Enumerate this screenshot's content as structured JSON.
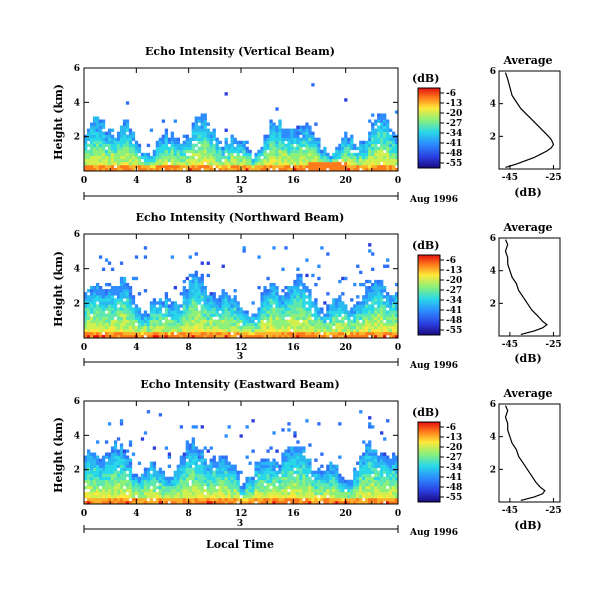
{
  "chart_data": [
    {
      "type": "heatmap",
      "title": "Echo Intensity (Vertical Beam)",
      "ylabel": "Height (km)",
      "xticks": [
        "0",
        "4",
        "8",
        "12",
        "16",
        "20",
        "0"
      ],
      "yticks": [
        "2",
        "4",
        "6"
      ],
      "xlim": [
        0,
        24
      ],
      "ylim": [
        0,
        6
      ],
      "date_label": "3",
      "month_label": "Aug 1996",
      "colorbar": {
        "unit": "(dB)",
        "ticks": [
          "-6",
          "-13",
          "-20",
          "-27",
          "-34",
          "-41",
          "-48",
          "-55"
        ]
      },
      "profile": {
        "title": "Average",
        "xlabel": "(dB)",
        "xticks": [
          "-45",
          "-25"
        ],
        "yticks": [
          "2",
          "4",
          "6"
        ],
        "xlim": [
          -50,
          -22
        ],
        "ylim": [
          0,
          6
        ],
        "points": [
          [
            -47,
            0.1
          ],
          [
            -42,
            0.3
          ],
          [
            -38,
            0.5
          ],
          [
            -34,
            0.7
          ],
          [
            -31,
            0.9
          ],
          [
            -28,
            1.1
          ],
          [
            -26,
            1.3
          ],
          [
            -25,
            1.5
          ],
          [
            -26,
            1.8
          ],
          [
            -28,
            2.1
          ],
          [
            -31,
            2.5
          ],
          [
            -34,
            2.9
          ],
          [
            -37,
            3.3
          ],
          [
            -40,
            3.7
          ],
          [
            -42,
            4.1
          ],
          [
            -44,
            4.5
          ],
          [
            -45,
            5.0
          ],
          [
            -46,
            5.5
          ],
          [
            -47,
            5.9
          ]
        ]
      }
    },
    {
      "type": "heatmap",
      "title": "Echo Intensity (Northward Beam)",
      "ylabel": "Height (km)",
      "xticks": [
        "0",
        "4",
        "8",
        "12",
        "16",
        "20",
        "0"
      ],
      "yticks": [
        "2",
        "4",
        "6"
      ],
      "xlim": [
        0,
        24
      ],
      "ylim": [
        0,
        6
      ],
      "date_label": "3",
      "month_label": "Aug 1996",
      "colorbar": {
        "unit": "(dB)",
        "ticks": [
          "-6",
          "-13",
          "-20",
          "-27",
          "-34",
          "-41",
          "-48",
          "-55"
        ]
      },
      "profile": {
        "title": "Average",
        "xlabel": "(dB)",
        "xticks": [
          "-45",
          "-25"
        ],
        "yticks": [
          "2",
          "4",
          "6"
        ],
        "xlim": [
          -50,
          -22
        ],
        "ylim": [
          0,
          6
        ],
        "points": [
          [
            -40,
            0.1
          ],
          [
            -34,
            0.3
          ],
          [
            -30,
            0.5
          ],
          [
            -28,
            0.7
          ],
          [
            -30,
            0.9
          ],
          [
            -32,
            1.2
          ],
          [
            -35,
            1.6
          ],
          [
            -37,
            2.0
          ],
          [
            -39,
            2.4
          ],
          [
            -41,
            2.8
          ],
          [
            -42,
            3.2
          ],
          [
            -44,
            3.6
          ],
          [
            -45,
            4.0
          ],
          [
            -46,
            4.4
          ],
          [
            -46,
            4.8
          ],
          [
            -47,
            5.2
          ],
          [
            -46,
            5.6
          ],
          [
            -47,
            5.9
          ]
        ]
      }
    },
    {
      "type": "heatmap",
      "title": "Echo Intensity (Eastward Beam)",
      "ylabel": "Height (km)",
      "xticks": [
        "0",
        "4",
        "8",
        "12",
        "16",
        "20",
        "0"
      ],
      "yticks": [
        "2",
        "4",
        "6"
      ],
      "xlim": [
        0,
        24
      ],
      "ylim": [
        0,
        6
      ],
      "date_label": "3",
      "month_label": "Aug 1996",
      "xlabel": "Local Time",
      "colorbar": {
        "unit": "(dB)",
        "ticks": [
          "-6",
          "-13",
          "-20",
          "-27",
          "-34",
          "-41",
          "-48",
          "-55"
        ]
      },
      "profile": {
        "title": "Average",
        "xlabel": "(dB)",
        "xticks": [
          "-45",
          "-25"
        ],
        "yticks": [
          "2",
          "4",
          "6"
        ],
        "xlim": [
          -50,
          -22
        ],
        "ylim": [
          0,
          6
        ],
        "points": [
          [
            -40,
            0.1
          ],
          [
            -34,
            0.3
          ],
          [
            -30,
            0.5
          ],
          [
            -29,
            0.7
          ],
          [
            -31,
            0.9
          ],
          [
            -33,
            1.2
          ],
          [
            -35,
            1.6
          ],
          [
            -37,
            2.0
          ],
          [
            -39,
            2.4
          ],
          [
            -41,
            2.8
          ],
          [
            -42,
            3.2
          ],
          [
            -44,
            3.6
          ],
          [
            -45,
            4.0
          ],
          [
            -46,
            4.4
          ],
          [
            -46,
            4.8
          ],
          [
            -47,
            5.2
          ],
          [
            -46,
            5.6
          ],
          [
            -47,
            5.9
          ]
        ]
      }
    }
  ]
}
